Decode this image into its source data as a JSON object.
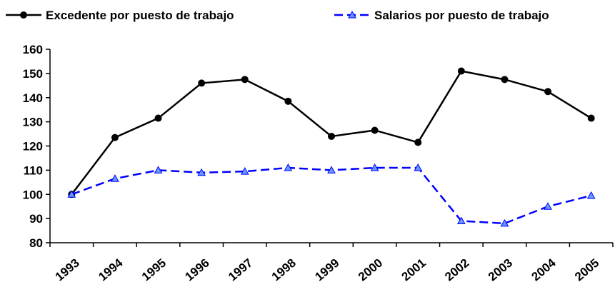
{
  "chart_data": {
    "type": "line",
    "categories": [
      "1993",
      "1994",
      "1995",
      "1996",
      "1997",
      "1998",
      "1999",
      "2000",
      "2001",
      "2002",
      "2003",
      "2004",
      "2005"
    ],
    "series": [
      {
        "name": "Excedente por puesto de trabajo",
        "color": "#000000",
        "marker": "circle",
        "dash": "solid",
        "values": [
          100,
          123.5,
          131.5,
          146,
          147.5,
          138.5,
          124,
          126.5,
          121.5,
          151,
          147.5,
          142.5,
          131.5
        ]
      },
      {
        "name": "Salarios por puesto de trabajo",
        "color": "#0000ff",
        "marker": "triangle",
        "dash": "dashed",
        "values": [
          100,
          106.5,
          110,
          109,
          109.5,
          111,
          110,
          111,
          111,
          89,
          88,
          95,
          99.5
        ]
      }
    ],
    "ylim": [
      80,
      160
    ],
    "yticks": [
      80,
      90,
      100,
      110,
      120,
      130,
      140,
      150,
      160
    ],
    "grid": false
  }
}
